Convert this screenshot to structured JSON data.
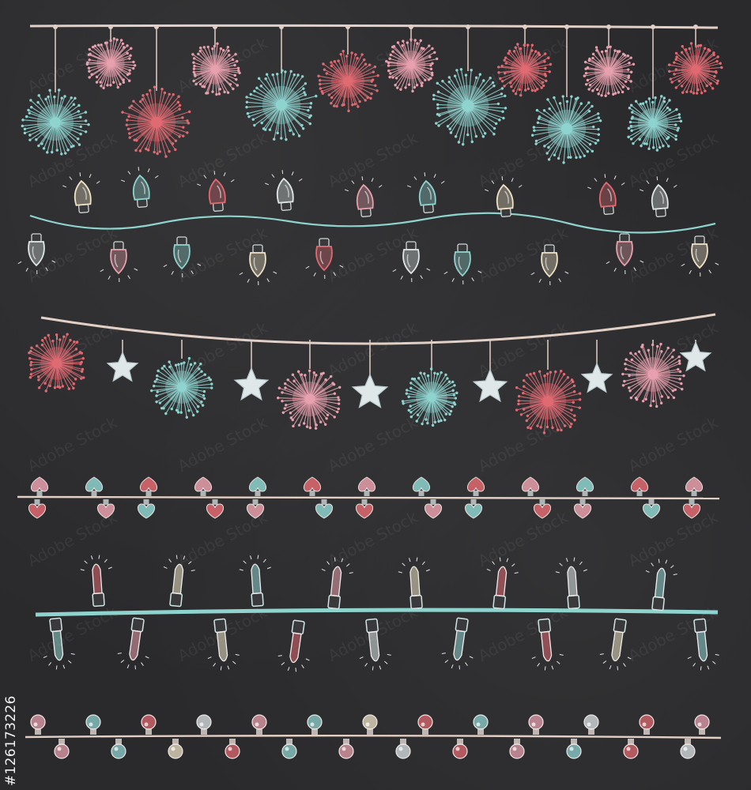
{
  "stock_id": "#126173226",
  "watermark_text": "Adobe Stock",
  "colors": {
    "background": "#2a2a2c",
    "pink": "#e7a0ad",
    "coral": "#e06a72",
    "mint": "#8fd3cf",
    "cream": "#efe3c7",
    "light": "#dfe7e8",
    "string": "#e2cfc5"
  },
  "garlands": [
    {
      "kind": "hanging-dandelion-bursts",
      "string_color": "string",
      "bulb_colors": [
        "mint",
        "pink",
        "coral",
        "pink",
        "mint",
        "coral",
        "pink",
        "mint",
        "coral",
        "mint",
        "pink",
        "mint",
        "coral",
        "mint"
      ]
    },
    {
      "kind": "christmas-bulbs",
      "string_color": "mint",
      "bulb_colors": [
        "cream",
        "mint",
        "coral",
        "light",
        "pink",
        "mint",
        "cream",
        "coral",
        "light",
        "mint",
        "cream",
        "pink"
      ]
    },
    {
      "kind": "stars-and-bursts",
      "string_color": "string",
      "item_icons": [
        "burst",
        "star",
        "burst",
        "star",
        "burst",
        "star",
        "burst",
        "star",
        "burst",
        "star",
        "burst",
        "star"
      ],
      "bulb_colors": [
        "coral",
        "light",
        "mint",
        "light",
        "pink",
        "light",
        "mint",
        "light",
        "coral",
        "light",
        "pink",
        "light"
      ]
    },
    {
      "kind": "heart-bulbs",
      "string_color": "string",
      "bulb_colors": [
        "pink",
        "mint",
        "coral",
        "pink",
        "mint",
        "coral",
        "pink",
        "mint",
        "coral",
        "pink",
        "mint",
        "coral"
      ]
    },
    {
      "kind": "candle-lights",
      "string_color": "mint",
      "bulb_colors": [
        "coral",
        "cream",
        "mint",
        "pink",
        "cream",
        "coral",
        "light",
        "mint"
      ]
    },
    {
      "kind": "round-bulbs",
      "string_color": "string",
      "bulb_colors": [
        "pink",
        "mint",
        "coral",
        "light",
        "pink",
        "mint",
        "cream",
        "coral",
        "mint",
        "pink",
        "light",
        "coral"
      ]
    }
  ]
}
